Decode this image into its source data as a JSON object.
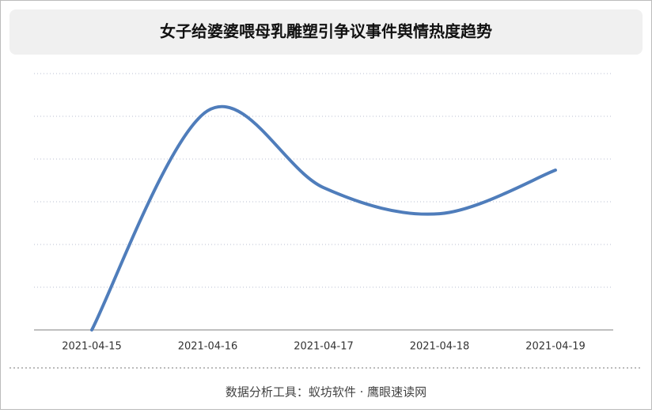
{
  "chart_data": {
    "type": "line",
    "title": "女子给婆婆喂母乳雕塑引争议事件舆情热度趋势",
    "categories": [
      "2021-04-15",
      "2021-04-16",
      "2021-04-17",
      "2021-04-18",
      "2021-04-19"
    ],
    "series": [
      {
        "color": "#4f7dbb",
        "values": [
          0,
          5.13,
          3.33,
          2.72,
          3.74
        ]
      }
    ],
    "ylim": [
      0,
      6
    ],
    "yticks": [
      0,
      1,
      2,
      3,
      4,
      5,
      6
    ],
    "grid": true
  },
  "footer": "数据分析工具：蚁坊软件 · 鹰眼速读网"
}
